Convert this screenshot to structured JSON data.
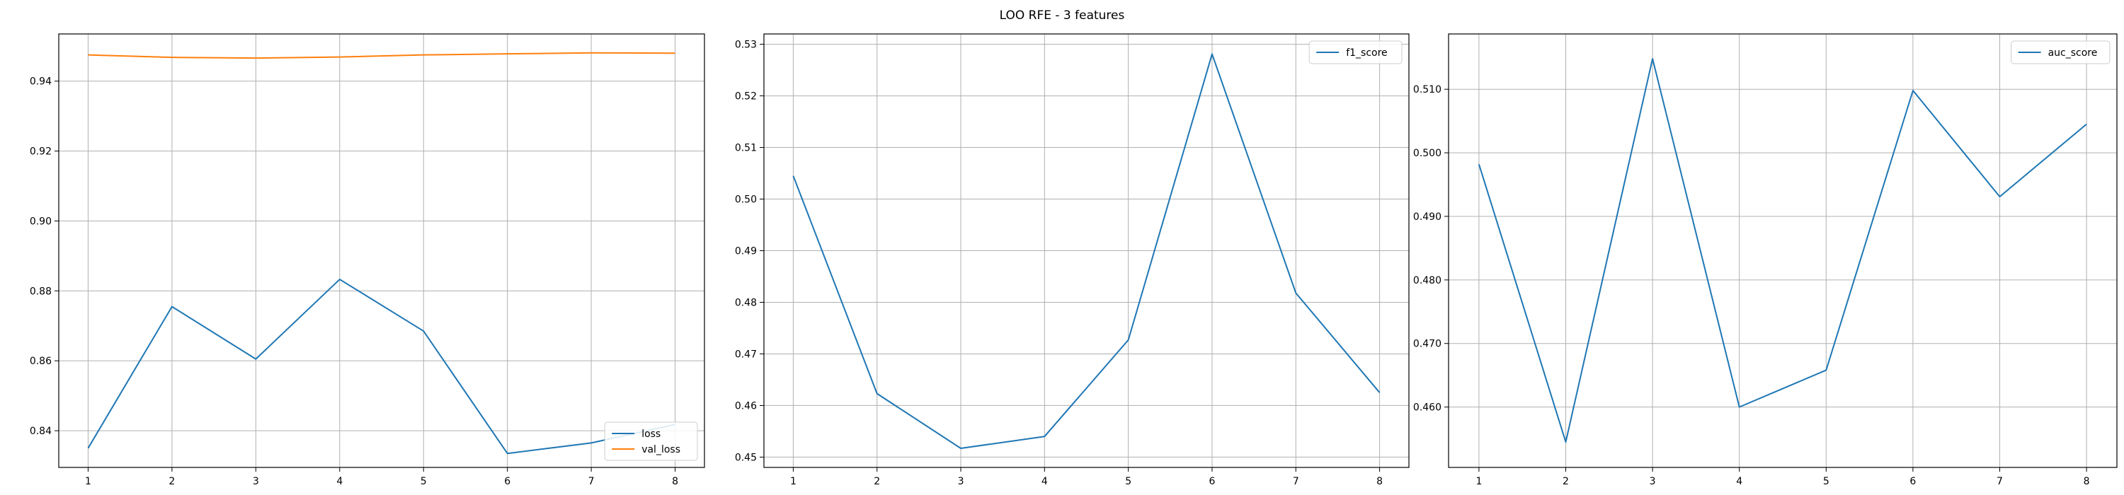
{
  "figure_title": "LOO RFE - 3 features",
  "chart_data": [
    {
      "type": "line",
      "x": [
        1,
        2,
        3,
        4,
        5,
        6,
        7,
        8
      ],
      "series": [
        {
          "name": "loss",
          "color": "#1f77b4",
          "values": [
            0.835,
            0.8755,
            0.8605,
            0.8833,
            0.8685,
            0.8335,
            0.8365,
            0.8418
          ]
        },
        {
          "name": "val_loss",
          "color": "#ff7f0e",
          "values": [
            0.9475,
            0.9468,
            0.9466,
            0.9469,
            0.9475,
            0.9478,
            0.9481,
            0.948
          ]
        }
      ],
      "xticks": [
        1,
        2,
        3,
        4,
        5,
        6,
        7,
        8
      ],
      "yticks": [
        0.84,
        0.86,
        0.88,
        0.9,
        0.92,
        0.94
      ],
      "ylim": [
        0.8295,
        0.9535
      ],
      "xlim": [
        0.65,
        8.35
      ],
      "grid": true,
      "legend_position": "lower-right"
    },
    {
      "type": "line",
      "x": [
        1,
        2,
        3,
        4,
        5,
        6,
        7,
        8
      ],
      "series": [
        {
          "name": "f1_score",
          "color": "#1f77b4",
          "values": [
            0.5045,
            0.4623,
            0.4517,
            0.454,
            0.4727,
            0.5281,
            0.4818,
            0.4625
          ]
        }
      ],
      "xticks": [
        1,
        2,
        3,
        4,
        5,
        6,
        7,
        8
      ],
      "yticks": [
        0.45,
        0.46,
        0.47,
        0.48,
        0.49,
        0.5,
        0.51,
        0.52,
        0.53
      ],
      "ylim": [
        0.448,
        0.532
      ],
      "xlim": [
        0.65,
        8.35
      ],
      "grid": true,
      "legend_position": "upper-right"
    },
    {
      "type": "line",
      "x": [
        1,
        2,
        3,
        4,
        5,
        6,
        7,
        8
      ],
      "series": [
        {
          "name": "auc_score",
          "color": "#1f77b4",
          "values": [
            0.4982,
            0.4545,
            0.5148,
            0.46,
            0.4658,
            0.5098,
            0.4931,
            0.5045
          ]
        }
      ],
      "xticks": [
        1,
        2,
        3,
        4,
        5,
        6,
        7,
        8
      ],
      "yticks": [
        0.46,
        0.47,
        0.48,
        0.49,
        0.5,
        0.51
      ],
      "ylim": [
        0.4505,
        0.5187
      ],
      "xlim": [
        0.65,
        8.35
      ],
      "grid": true,
      "legend_position": "upper-right"
    }
  ]
}
